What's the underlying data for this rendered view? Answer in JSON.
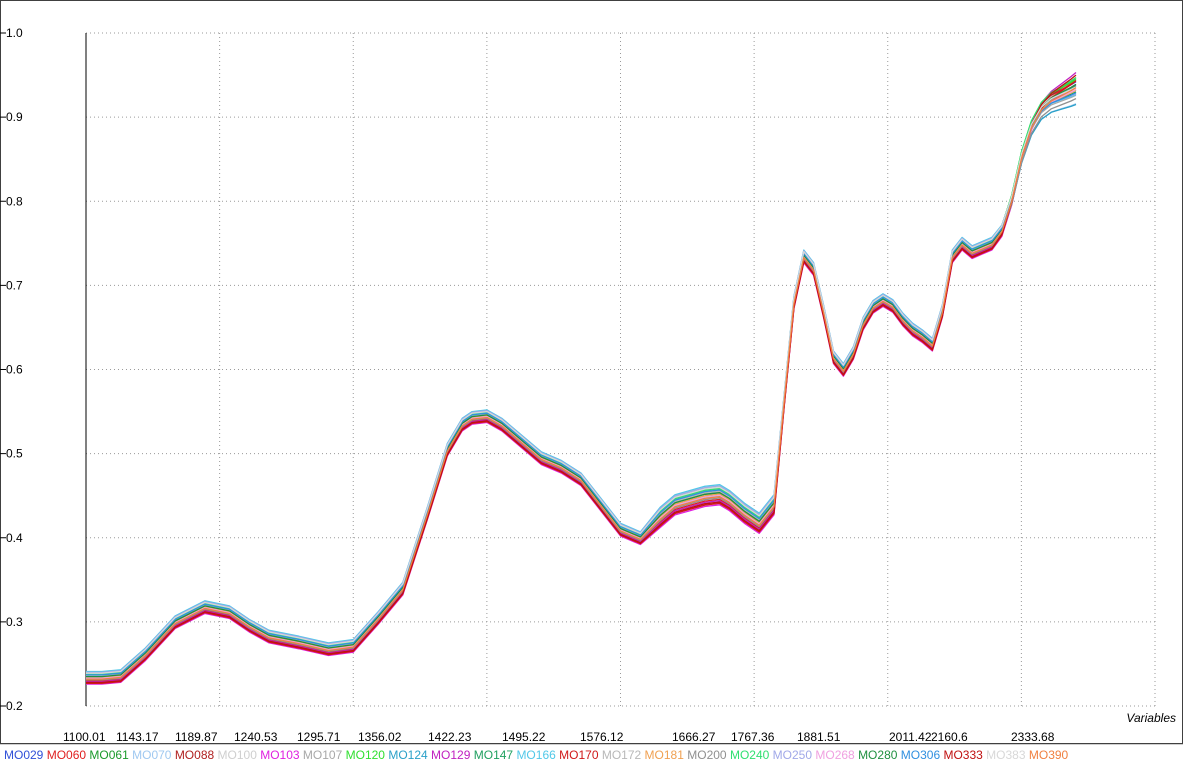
{
  "chart_data": {
    "type": "line",
    "title": "",
    "xlabel": "Variables",
    "ylabel": "",
    "ylim": [
      0.2,
      1.0
    ],
    "yticks": [
      "0.2",
      "0.3",
      "0.4",
      "0.5",
      "0.6",
      "0.7",
      "0.8",
      "0.9",
      "1.0"
    ],
    "x_tick_labels": [
      "1100.01",
      "1143.17",
      "1189.87",
      "1240.53",
      "1295.71",
      "1356.02",
      "1422.23",
      "1495.22",
      "1576.12",
      "1666.27",
      "1767.36",
      "1881.51",
      "2011.42",
      "2160.6",
      "2333.68"
    ],
    "x_index_range": [
      0,
      1000
    ],
    "grid": true,
    "legend_position": "bottom",
    "base_profile": {
      "x": [
        0,
        16,
        35,
        60,
        90,
        120,
        145,
        165,
        185,
        215,
        245,
        270,
        295,
        320,
        345,
        365,
        380,
        390,
        405,
        420,
        440,
        460,
        480,
        500,
        520,
        540,
        560,
        580,
        595,
        610,
        625,
        640,
        650,
        665,
        680,
        695,
        705,
        715,
        725,
        735,
        745,
        755,
        765,
        775,
        785,
        795,
        805,
        815,
        825,
        835,
        845,
        855,
        865,
        875,
        885,
        895,
        905,
        915,
        925,
        935,
        945,
        955,
        965,
        975,
        985,
        995,
        1000
      ],
      "y": [
        0.234,
        0.234,
        0.236,
        0.262,
        0.3,
        0.318,
        0.312,
        0.296,
        0.283,
        0.276,
        0.268,
        0.272,
        0.305,
        0.34,
        0.43,
        0.505,
        0.535,
        0.543,
        0.545,
        0.535,
        0.515,
        0.495,
        0.485,
        0.47,
        0.44,
        0.41,
        0.4,
        0.425,
        0.44,
        0.445,
        0.45,
        0.452,
        0.445,
        0.43,
        0.418,
        0.44,
        0.56,
        0.68,
        0.735,
        0.72,
        0.67,
        0.615,
        0.6,
        0.62,
        0.655,
        0.675,
        0.683,
        0.676,
        0.66,
        0.648,
        0.64,
        0.63,
        0.67,
        0.735,
        0.75,
        0.74,
        0.745,
        0.75,
        0.765,
        0.8,
        0.85,
        0.885,
        0.905,
        0.915,
        0.92,
        0.925,
        0.928
      ]
    },
    "series": [
      {
        "name": "MO029",
        "color": "#3050d8",
        "offset": 0.004,
        "tail": 0.01
      },
      {
        "name": "MO060",
        "color": "#e02020",
        "offset": -0.004,
        "tail": 0.02
      },
      {
        "name": "MO061",
        "color": "#1a9a2a",
        "offset": 0.002,
        "tail": 0.0
      },
      {
        "name": "MO070",
        "color": "#9fc8f0",
        "offset": -0.002,
        "tail": -0.01
      },
      {
        "name": "MO088",
        "color": "#b02020",
        "offset": -0.006,
        "tail": 0.025
      },
      {
        "name": "MO100",
        "color": "#cfcfcf",
        "offset": 0.006,
        "tail": 0.005
      },
      {
        "name": "MO103",
        "color": "#e020e0",
        "offset": -0.008,
        "tail": 0.018
      },
      {
        "name": "MO107",
        "color": "#a8a8a8",
        "offset": 0.003,
        "tail": -0.005
      },
      {
        "name": "MO120",
        "color": "#30e030",
        "offset": 0.005,
        "tail": 0.012
      },
      {
        "name": "MO124",
        "color": "#2aa0c8",
        "offset": -0.001,
        "tail": -0.012
      },
      {
        "name": "MO129",
        "color": "#c020c0",
        "offset": -0.005,
        "tail": 0.03
      },
      {
        "name": "MO147",
        "color": "#20a060",
        "offset": 0.001,
        "tail": 0.008
      },
      {
        "name": "MO166",
        "color": "#50c8e8",
        "offset": 0.007,
        "tail": -0.008
      },
      {
        "name": "MO170",
        "color": "#d01818",
        "offset": -0.007,
        "tail": 0.022
      },
      {
        "name": "MO172",
        "color": "#b8b8b8",
        "offset": 0.002,
        "tail": 0.002
      },
      {
        "name": "MO181",
        "color": "#f0a050",
        "offset": 0.0,
        "tail": 0.004
      },
      {
        "name": "MO200",
        "color": "#909090",
        "offset": -0.003,
        "tail": -0.003
      },
      {
        "name": "MO240",
        "color": "#30e070",
        "offset": 0.004,
        "tail": 0.015
      },
      {
        "name": "MO250",
        "color": "#a0a8e8",
        "offset": 0.006,
        "tail": -0.006
      },
      {
        "name": "MO268",
        "color": "#f0a0e0",
        "offset": -0.001,
        "tail": 0.006
      },
      {
        "name": "MO280",
        "color": "#209040",
        "offset": 0.001,
        "tail": 0.01
      },
      {
        "name": "MO306",
        "color": "#3090e0",
        "offset": 0.003,
        "tail": -0.002
      },
      {
        "name": "MO333",
        "color": "#c01010",
        "offset": -0.006,
        "tail": 0.028
      },
      {
        "name": "MO383",
        "color": "#d8d8d8",
        "offset": 0.005,
        "tail": 0.003
      },
      {
        "name": "MO390",
        "color": "#f08040",
        "offset": -0.002,
        "tail": 0.009
      }
    ]
  }
}
